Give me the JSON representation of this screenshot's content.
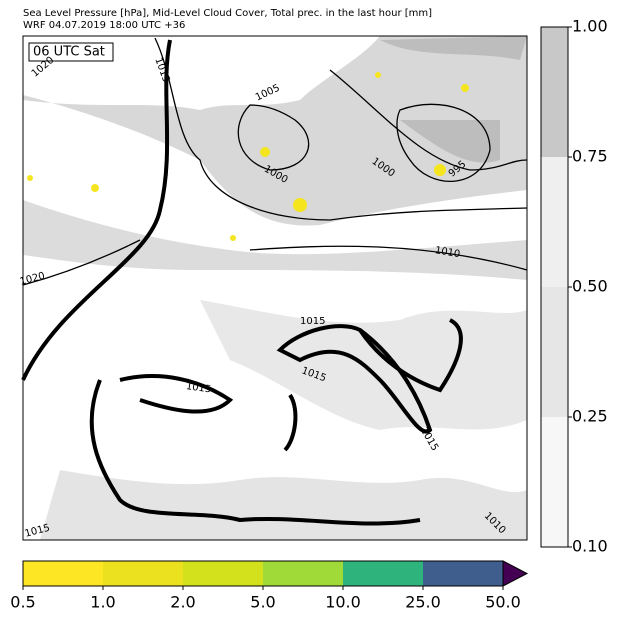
{
  "header": {
    "title": "Sea Level Pressure [hPa], Mid-Level Cloud Cover, Total prec. in the last hour [mm]",
    "subtitle": "WRF 04.07.2019 18:00 UTC +36"
  },
  "map": {
    "time_label": "06 UTC Sat",
    "isobar_labels": [
      "1015",
      "1020",
      "1005",
      "1000",
      "1000",
      "995",
      "1010",
      "1020",
      "1015",
      "1015",
      "1015",
      "1015",
      "1010",
      "1015"
    ]
  },
  "cloud_colorbar": {
    "ticks": [
      {
        "value": 0.1,
        "label": "0.10"
      },
      0.25,
      {
        "value": 0.5,
        "label": "0.50"
      },
      0.75,
      {
        "value": 1,
        "label": "1.00"
      }
    ],
    "colors": [
      "#f7f7f7",
      "#e6e6e6",
      "#efefef",
      "#c8c8c8"
    ]
  },
  "precip_colorbar": {
    "ticks": [
      0.5,
      {
        "value": 1,
        "label": "1.0"
      },
      {
        "value": 2,
        "label": "2.0"
      },
      {
        "value": 5,
        "label": "5.0"
      },
      {
        "value": 10,
        "label": "10.0"
      },
      {
        "value": 25,
        "label": "25.0"
      },
      {
        "value": 50,
        "label": "50.0"
      }
    ],
    "colors": [
      "#fde725",
      "#ebe11f",
      "#d2e11b",
      "#a0da39",
      "#2eb37c",
      "#3f5e8e",
      "#440154"
    ]
  }
}
